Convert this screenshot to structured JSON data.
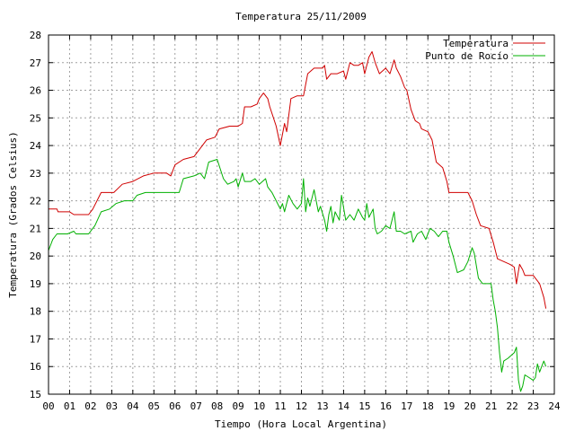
{
  "chart_data": {
    "type": "line",
    "title": "Temperatura 25/11/2009",
    "xlabel": "Tiempo (Hora Local Argentina)",
    "ylabel": "Temperatura (Grados Celsius)",
    "xlim": [
      0,
      24
    ],
    "ylim": [
      15,
      28
    ],
    "xticks": [
      "00",
      "01",
      "02",
      "03",
      "04",
      "05",
      "06",
      "07",
      "08",
      "09",
      "10",
      "11",
      "12",
      "13",
      "14",
      "15",
      "16",
      "17",
      "18",
      "19",
      "20",
      "21",
      "22",
      "23",
      "24"
    ],
    "yticks": [
      15,
      16,
      17,
      18,
      19,
      20,
      21,
      22,
      23,
      24,
      25,
      26,
      27,
      28
    ],
    "grid": true,
    "legend_position": "top-right",
    "series": [
      {
        "name": "Temperatura",
        "color": "#d00000",
        "points": [
          [
            0.0,
            21.7
          ],
          [
            0.4,
            21.7
          ],
          [
            0.45,
            21.6
          ],
          [
            1.0,
            21.6
          ],
          [
            1.2,
            21.5
          ],
          [
            1.9,
            21.5
          ],
          [
            2.1,
            21.7
          ],
          [
            2.5,
            22.3
          ],
          [
            3.1,
            22.3
          ],
          [
            3.5,
            22.6
          ],
          [
            4.0,
            22.7
          ],
          [
            4.5,
            22.9
          ],
          [
            5.0,
            23.0
          ],
          [
            5.6,
            23.0
          ],
          [
            5.8,
            22.9
          ],
          [
            6.0,
            23.3
          ],
          [
            6.4,
            23.5
          ],
          [
            6.9,
            23.6
          ],
          [
            7.2,
            23.9
          ],
          [
            7.5,
            24.2
          ],
          [
            7.9,
            24.3
          ],
          [
            8.1,
            24.6
          ],
          [
            8.6,
            24.7
          ],
          [
            9.0,
            24.7
          ],
          [
            9.2,
            24.8
          ],
          [
            9.3,
            25.4
          ],
          [
            9.6,
            25.4
          ],
          [
            9.9,
            25.5
          ],
          [
            10.0,
            25.7
          ],
          [
            10.2,
            25.9
          ],
          [
            10.4,
            25.7
          ],
          [
            10.5,
            25.4
          ],
          [
            10.8,
            24.7
          ],
          [
            11.0,
            24.0
          ],
          [
            11.2,
            24.8
          ],
          [
            11.3,
            24.5
          ],
          [
            11.5,
            25.7
          ],
          [
            11.8,
            25.8
          ],
          [
            12.1,
            25.8
          ],
          [
            12.3,
            26.6
          ],
          [
            12.6,
            26.8
          ],
          [
            13.0,
            26.8
          ],
          [
            13.1,
            26.9
          ],
          [
            13.2,
            26.4
          ],
          [
            13.4,
            26.6
          ],
          [
            13.7,
            26.6
          ],
          [
            14.0,
            26.7
          ],
          [
            14.1,
            26.4
          ],
          [
            14.3,
            27.0
          ],
          [
            14.5,
            26.9
          ],
          [
            14.7,
            26.9
          ],
          [
            14.9,
            27.0
          ],
          [
            15.0,
            26.6
          ],
          [
            15.2,
            27.2
          ],
          [
            15.35,
            27.4
          ],
          [
            15.5,
            27.0
          ],
          [
            15.7,
            26.6
          ],
          [
            16.0,
            26.8
          ],
          [
            16.2,
            26.6
          ],
          [
            16.4,
            27.1
          ],
          [
            16.5,
            26.8
          ],
          [
            16.7,
            26.5
          ],
          [
            16.9,
            26.1
          ],
          [
            17.0,
            26.0
          ],
          [
            17.2,
            25.3
          ],
          [
            17.4,
            24.9
          ],
          [
            17.6,
            24.8
          ],
          [
            17.7,
            24.6
          ],
          [
            18.0,
            24.5
          ],
          [
            18.2,
            24.2
          ],
          [
            18.4,
            23.4
          ],
          [
            18.7,
            23.2
          ],
          [
            18.9,
            22.7
          ],
          [
            19.0,
            22.3
          ],
          [
            19.5,
            22.3
          ],
          [
            19.9,
            22.3
          ],
          [
            20.1,
            22.0
          ],
          [
            20.3,
            21.5
          ],
          [
            20.5,
            21.1
          ],
          [
            20.9,
            21.0
          ],
          [
            21.1,
            20.5
          ],
          [
            21.3,
            19.9
          ],
          [
            21.6,
            19.8
          ],
          [
            21.9,
            19.7
          ],
          [
            22.1,
            19.6
          ],
          [
            22.2,
            19.0
          ],
          [
            22.35,
            19.7
          ],
          [
            22.5,
            19.5
          ],
          [
            22.6,
            19.3
          ],
          [
            23.0,
            19.3
          ],
          [
            23.1,
            19.2
          ],
          [
            23.3,
            19.0
          ],
          [
            23.5,
            18.5
          ],
          [
            23.6,
            18.1
          ]
        ]
      },
      {
        "name": "Punto de Rocío",
        "color": "#00b000",
        "points": [
          [
            0.0,
            20.2
          ],
          [
            0.2,
            20.6
          ],
          [
            0.4,
            20.8
          ],
          [
            0.9,
            20.8
          ],
          [
            1.2,
            20.9
          ],
          [
            1.3,
            20.8
          ],
          [
            1.9,
            20.8
          ],
          [
            2.2,
            21.1
          ],
          [
            2.5,
            21.6
          ],
          [
            2.9,
            21.7
          ],
          [
            3.2,
            21.9
          ],
          [
            3.6,
            22.0
          ],
          [
            4.0,
            22.0
          ],
          [
            4.2,
            22.2
          ],
          [
            4.6,
            22.3
          ],
          [
            5.6,
            22.3
          ],
          [
            6.2,
            22.3
          ],
          [
            6.4,
            22.8
          ],
          [
            6.9,
            22.9
          ],
          [
            7.2,
            23.0
          ],
          [
            7.4,
            22.8
          ],
          [
            7.6,
            23.4
          ],
          [
            8.0,
            23.5
          ],
          [
            8.3,
            22.8
          ],
          [
            8.5,
            22.6
          ],
          [
            8.8,
            22.7
          ],
          [
            8.9,
            22.8
          ],
          [
            9.0,
            22.5
          ],
          [
            9.2,
            23.0
          ],
          [
            9.3,
            22.7
          ],
          [
            9.6,
            22.7
          ],
          [
            9.8,
            22.8
          ],
          [
            10.0,
            22.6
          ],
          [
            10.3,
            22.8
          ],
          [
            10.4,
            22.5
          ],
          [
            10.6,
            22.3
          ],
          [
            10.8,
            22.0
          ],
          [
            11.0,
            21.7
          ],
          [
            11.1,
            21.9
          ],
          [
            11.2,
            21.6
          ],
          [
            11.4,
            22.2
          ],
          [
            11.6,
            21.9
          ],
          [
            11.8,
            21.7
          ],
          [
            12.0,
            21.9
          ],
          [
            12.1,
            22.8
          ],
          [
            12.2,
            21.6
          ],
          [
            12.3,
            22.1
          ],
          [
            12.4,
            21.8
          ],
          [
            12.6,
            22.4
          ],
          [
            12.8,
            21.6
          ],
          [
            12.9,
            21.8
          ],
          [
            13.1,
            21.3
          ],
          [
            13.2,
            20.9
          ],
          [
            13.3,
            21.5
          ],
          [
            13.4,
            21.8
          ],
          [
            13.5,
            21.2
          ],
          [
            13.6,
            21.6
          ],
          [
            13.8,
            21.3
          ],
          [
            13.9,
            22.2
          ],
          [
            14.1,
            21.3
          ],
          [
            14.3,
            21.5
          ],
          [
            14.5,
            21.3
          ],
          [
            14.7,
            21.7
          ],
          [
            14.9,
            21.4
          ],
          [
            15.0,
            21.3
          ],
          [
            15.1,
            21.9
          ],
          [
            15.2,
            21.4
          ],
          [
            15.4,
            21.7
          ],
          [
            15.5,
            21.0
          ],
          [
            15.6,
            20.8
          ],
          [
            15.8,
            20.9
          ],
          [
            16.0,
            21.1
          ],
          [
            16.2,
            21.0
          ],
          [
            16.4,
            21.6
          ],
          [
            16.5,
            20.9
          ],
          [
            16.7,
            20.9
          ],
          [
            16.9,
            20.8
          ],
          [
            17.2,
            20.9
          ],
          [
            17.3,
            20.5
          ],
          [
            17.5,
            20.8
          ],
          [
            17.7,
            20.9
          ],
          [
            17.9,
            20.6
          ],
          [
            18.1,
            21.0
          ],
          [
            18.3,
            20.9
          ],
          [
            18.5,
            20.7
          ],
          [
            18.7,
            20.9
          ],
          [
            18.9,
            20.9
          ],
          [
            19.0,
            20.5
          ],
          [
            19.2,
            20.0
          ],
          [
            19.4,
            19.4
          ],
          [
            19.7,
            19.5
          ],
          [
            19.9,
            19.8
          ],
          [
            20.1,
            20.3
          ],
          [
            20.2,
            20.1
          ],
          [
            20.4,
            19.2
          ],
          [
            20.6,
            19.0
          ],
          [
            21.0,
            19.0
          ],
          [
            21.1,
            18.4
          ],
          [
            21.2,
            18.0
          ],
          [
            21.3,
            17.4
          ],
          [
            21.4,
            16.5
          ],
          [
            21.5,
            15.8
          ],
          [
            21.6,
            16.2
          ],
          [
            21.8,
            16.3
          ],
          [
            22.1,
            16.5
          ],
          [
            22.2,
            16.7
          ],
          [
            22.3,
            15.5
          ],
          [
            22.4,
            15.1
          ],
          [
            22.5,
            15.3
          ],
          [
            22.6,
            15.7
          ],
          [
            22.8,
            15.6
          ],
          [
            23.0,
            15.5
          ],
          [
            23.1,
            15.6
          ],
          [
            23.2,
            16.1
          ],
          [
            23.3,
            15.8
          ],
          [
            23.4,
            16.0
          ],
          [
            23.5,
            16.2
          ],
          [
            23.6,
            16.0
          ]
        ]
      }
    ]
  }
}
